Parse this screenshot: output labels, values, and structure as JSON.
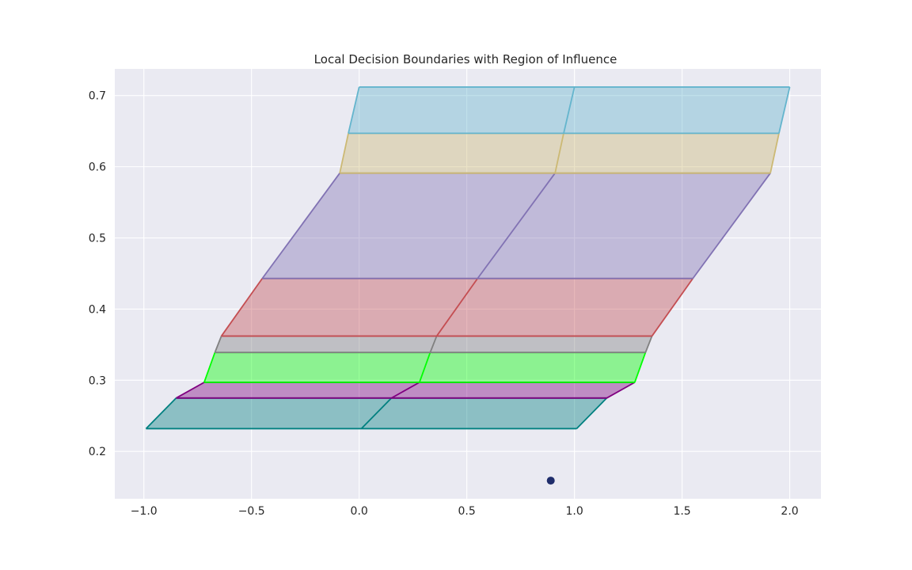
{
  "chart_data": {
    "type": "area",
    "title": "Local Decision Boundaries with Region of Influence",
    "xlabel": "",
    "ylabel": "",
    "xlim": [
      -1.135,
      2.145
    ],
    "ylim": [
      0.1335,
      0.7375
    ],
    "grid": true,
    "style": "seaborn-darkgrid",
    "x_ticks": [
      -1.0,
      -0.5,
      0.0,
      0.5,
      1.0,
      1.5,
      2.0
    ],
    "x_tick_labels": [
      "−1.0",
      "−0.5",
      "0.0",
      "0.5",
      "1.0",
      "1.5",
      "2.0"
    ],
    "y_ticks": [
      0.2,
      0.3,
      0.4,
      0.5,
      0.6,
      0.7
    ],
    "y_tick_labels": [
      "0.2",
      "0.3",
      "0.4",
      "0.5",
      "0.6",
      "0.7"
    ],
    "regions": [
      {
        "color": "#008080",
        "y0": 0.232,
        "y1": 0.275,
        "left": [
          [
            -0.99,
            0.232
          ],
          [
            -0.85,
            0.275
          ]
        ],
        "mid": [
          [
            0.01,
            0.232
          ],
          [
            0.15,
            0.275
          ]
        ],
        "right": [
          [
            1.01,
            0.232
          ],
          [
            1.15,
            0.275
          ]
        ]
      },
      {
        "color": "#800080",
        "y0": 0.275,
        "y1": 0.297,
        "left": [
          [
            -0.85,
            0.275
          ],
          [
            -0.72,
            0.297
          ]
        ],
        "mid": [
          [
            0.15,
            0.275
          ],
          [
            0.28,
            0.297
          ]
        ],
        "right": [
          [
            1.15,
            0.275
          ],
          [
            1.28,
            0.297
          ]
        ]
      },
      {
        "color": "#00ff00",
        "y0": 0.297,
        "y1": 0.339,
        "left": [
          [
            -0.72,
            0.297
          ],
          [
            -0.67,
            0.339
          ]
        ],
        "mid": [
          [
            0.28,
            0.297
          ],
          [
            0.33,
            0.339
          ]
        ],
        "right": [
          [
            1.28,
            0.297
          ],
          [
            1.33,
            0.339
          ]
        ]
      },
      {
        "color": "#808080",
        "y0": 0.339,
        "y1": 0.362,
        "left": [
          [
            -0.67,
            0.339
          ],
          [
            -0.64,
            0.362
          ]
        ],
        "mid": [
          [
            0.33,
            0.339
          ],
          [
            0.36,
            0.362
          ]
        ],
        "right": [
          [
            1.33,
            0.339
          ],
          [
            1.36,
            0.362
          ]
        ]
      },
      {
        "color": "#c44e52",
        "y0": 0.362,
        "y1": 0.443,
        "left": [
          [
            -0.64,
            0.362
          ],
          [
            -0.45,
            0.443
          ]
        ],
        "mid": [
          [
            0.36,
            0.362
          ],
          [
            0.55,
            0.443
          ]
        ],
        "right": [
          [
            1.36,
            0.362
          ],
          [
            1.55,
            0.443
          ]
        ]
      },
      {
        "color": "#8172b3",
        "y0": 0.443,
        "y1": 0.591,
        "left": [
          [
            -0.45,
            0.443
          ],
          [
            -0.09,
            0.591
          ]
        ],
        "mid": [
          [
            0.55,
            0.443
          ],
          [
            0.91,
            0.591
          ]
        ],
        "right": [
          [
            1.55,
            0.443
          ],
          [
            1.91,
            0.591
          ]
        ]
      },
      {
        "color": "#ccb974",
        "y0": 0.591,
        "y1": 0.647,
        "left": [
          [
            -0.09,
            0.591
          ],
          [
            -0.05,
            0.647
          ]
        ],
        "mid": [
          [
            0.91,
            0.591
          ],
          [
            0.95,
            0.647
          ]
        ],
        "right": [
          [
            1.91,
            0.591
          ],
          [
            1.95,
            0.647
          ]
        ]
      },
      {
        "color": "#64b5cd",
        "y0": 0.647,
        "y1": 0.712,
        "left": [
          [
            -0.05,
            0.647
          ],
          [
            0.0,
            0.712
          ]
        ],
        "mid": [
          [
            0.95,
            0.647
          ],
          [
            1.0,
            0.712
          ]
        ],
        "right": [
          [
            1.95,
            0.647
          ],
          [
            2.0,
            0.712
          ]
        ]
      }
    ],
    "points": [
      {
        "x": 0.89,
        "y": 0.159,
        "color": "#1f2d6b"
      }
    ]
  }
}
